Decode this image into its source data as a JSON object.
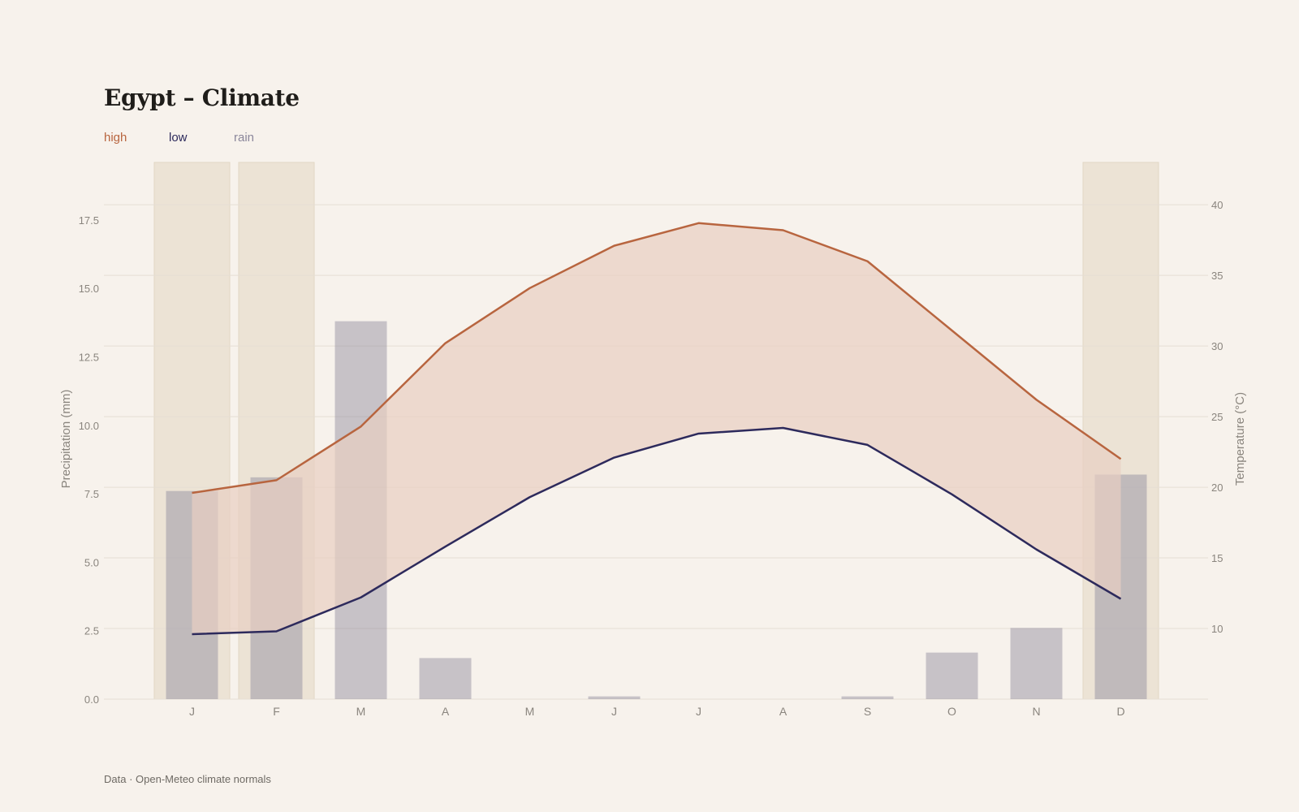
{
  "title": "Egypt – Climate",
  "source": "Data · Open-Meteo climate normals",
  "colors": {
    "high": "#b8653f",
    "low": "#2d2a5c",
    "rain": "#8b879b",
    "band_fill": "#e8cfc2",
    "highlight": "#ece3d5",
    "grid": "#e6ded4"
  },
  "legend": [
    {
      "key": "high",
      "label": "high"
    },
    {
      "key": "low",
      "label": "low"
    },
    {
      "key": "rain",
      "label": "rain"
    }
  ],
  "chart_data": {
    "type": "bar+line",
    "categories": [
      "J",
      "F",
      "M",
      "A",
      "M",
      "J",
      "J",
      "A",
      "S",
      "O",
      "N",
      "D"
    ],
    "highlight_months": [
      0,
      1,
      11
    ],
    "series": [
      {
        "name": "high",
        "axis": "right",
        "type": "line",
        "values": [
          19.6,
          20.5,
          24.3,
          30.2,
          34.1,
          37.1,
          38.7,
          38.2,
          36.0,
          31.1,
          26.2,
          22.0
        ]
      },
      {
        "name": "low",
        "axis": "right",
        "type": "line",
        "values": [
          9.6,
          9.8,
          12.2,
          15.8,
          19.3,
          22.1,
          23.8,
          24.2,
          23.0,
          19.5,
          15.6,
          12.1
        ]
      },
      {
        "name": "rain",
        "axis": "left",
        "type": "bar",
        "values": [
          7.6,
          8.1,
          13.8,
          1.5,
          0.0,
          0.1,
          0.0,
          0.0,
          0.1,
          1.7,
          2.6,
          8.2
        ]
      }
    ],
    "y_left": {
      "label": "Precipitation (mm)",
      "range": [
        0,
        19.6
      ],
      "ticks": [
        "0.0",
        "2.5",
        "5.0",
        "7.5",
        "10.0",
        "12.5",
        "15.0",
        "17.5"
      ]
    },
    "y_right": {
      "label": "Temperature (°C)",
      "range": [
        5,
        43
      ],
      "ticks": [
        "10",
        "15",
        "20",
        "25",
        "30",
        "35",
        "40"
      ]
    },
    "grid": true,
    "legend_position": "top-left"
  }
}
